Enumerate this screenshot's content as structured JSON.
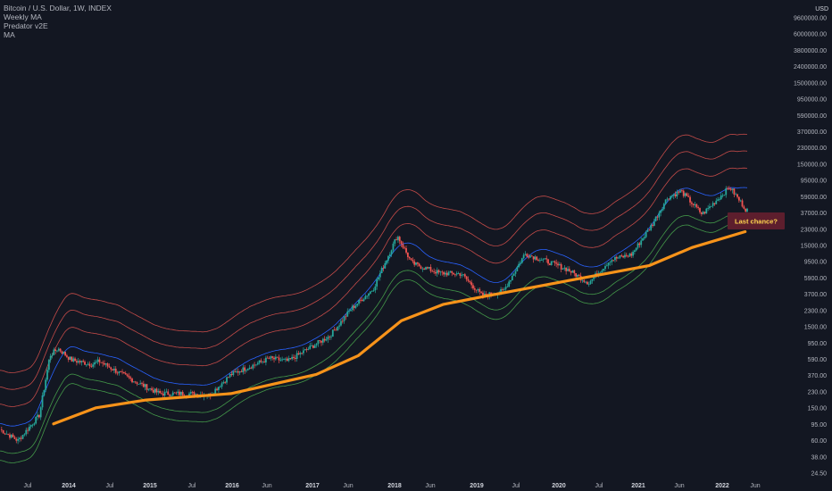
{
  "legend": {
    "symbol": "Bitcoin / U.S. Dollar, 1W, INDEX",
    "indicators": [
      "Weekly MA",
      "Predator v2E",
      "MA"
    ]
  },
  "price_axis": {
    "unit": "USD",
    "ticks": [
      "9600000.00",
      "6000000.00",
      "3800000.00",
      "2400000.00",
      "1500000.00",
      "950000.00",
      "590000.00",
      "370000.00",
      "230000.00",
      "150000.00",
      "95000.00",
      "59000.00",
      "37000.00",
      "23000.00",
      "15000.00",
      "9500.00",
      "5900.00",
      "3700.00",
      "2300.00",
      "1500.00",
      "950.00",
      "590.00",
      "370.00",
      "230.00",
      "150.00",
      "95.00",
      "60.00",
      "38.00",
      "24.50"
    ]
  },
  "time_axis": {
    "ticks": [
      {
        "label": "Jul",
        "year": false
      },
      {
        "label": "2014",
        "year": true
      },
      {
        "label": "Jul",
        "year": false
      },
      {
        "label": "2015",
        "year": true
      },
      {
        "label": "Jul",
        "year": false
      },
      {
        "label": "2016",
        "year": true
      },
      {
        "label": "Jun",
        "year": false
      },
      {
        "label": "2017",
        "year": true
      },
      {
        "label": "Jun",
        "year": false
      },
      {
        "label": "2018",
        "year": true
      },
      {
        "label": "Jun",
        "year": false
      },
      {
        "label": "2019",
        "year": true
      },
      {
        "label": "Jul",
        "year": false
      },
      {
        "label": "2020",
        "year": true
      },
      {
        "label": "Jul",
        "year": false
      },
      {
        "label": "2021",
        "year": true
      },
      {
        "label": "Jun",
        "year": false
      },
      {
        "label": "2022",
        "year": true
      },
      {
        "label": "Jun",
        "year": false
      }
    ]
  },
  "annotation": {
    "text": "Last chance?"
  },
  "colors": {
    "background": "#131722",
    "up_candle": "#26a69a",
    "down_candle": "#ef5350",
    "ma_line": "#f7931a",
    "upper_bands": "#e2534f",
    "lower_bands": "#4caf50",
    "mid_band": "#2962ff",
    "annotation_bg": "#5d1e2d",
    "annotation_text": "#ffd54f"
  },
  "chart_data": {
    "type": "candlestick",
    "scale": "log",
    "x_unit": "date",
    "x_range": [
      "2013-04-15",
      "2022-08-15"
    ],
    "y_range": [
      24.5,
      9600000
    ],
    "price_path": [
      [
        "2013-04-01",
        100
      ],
      [
        "2013-07-01",
        70
      ],
      [
        "2013-10-01",
        140
      ],
      [
        "2013-11-15",
        700
      ],
      [
        "2013-12-20",
        850
      ],
      [
        "2014-02-15",
        620
      ],
      [
        "2014-05-15",
        550
      ],
      [
        "2014-06-15",
        600
      ],
      [
        "2014-09-01",
        450
      ],
      [
        "2014-12-01",
        330
      ],
      [
        "2015-03-01",
        250
      ],
      [
        "2015-07-01",
        250
      ],
      [
        "2015-10-01",
        240
      ],
      [
        "2016-01-01",
        420
      ],
      [
        "2016-06-15",
        650
      ],
      [
        "2016-09-01",
        600
      ],
      [
        "2016-12-15",
        900
      ],
      [
        "2017-03-01",
        1200
      ],
      [
        "2017-06-01",
        2500
      ],
      [
        "2017-09-01",
        4200
      ],
      [
        "2017-12-15",
        18000
      ],
      [
        "2018-02-15",
        8500
      ],
      [
        "2018-06-15",
        6500
      ],
      [
        "2018-09-15",
        6400
      ],
      [
        "2018-12-15",
        3500
      ],
      [
        "2019-03-15",
        4000
      ],
      [
        "2019-06-15",
        11000
      ],
      [
        "2019-09-15",
        9000
      ],
      [
        "2019-12-15",
        7200
      ],
      [
        "2020-03-15",
        5000
      ],
      [
        "2020-06-15",
        9300
      ],
      [
        "2020-09-15",
        10800
      ],
      [
        "2020-12-15",
        25000
      ],
      [
        "2021-02-15",
        50000
      ],
      [
        "2021-04-15",
        60000
      ],
      [
        "2021-07-15",
        32000
      ],
      [
        "2021-11-10",
        67000
      ],
      [
        "2022-01-20",
        36000
      ]
    ],
    "ma": [
      [
        "2013-12-01",
        110
      ],
      [
        "2014-06-01",
        170
      ],
      [
        "2015-01-01",
        210
      ],
      [
        "2016-01-01",
        250
      ],
      [
        "2017-01-01",
        420
      ],
      [
        "2017-07-01",
        700
      ],
      [
        "2018-01-01",
        1800
      ],
      [
        "2018-07-01",
        2800
      ],
      [
        "2019-01-01",
        3500
      ],
      [
        "2020-01-01",
        5400
      ],
      [
        "2020-12-01",
        8000
      ],
      [
        "2021-06-01",
        13000
      ],
      [
        "2022-01-15",
        20000
      ]
    ],
    "upper_band_offsets": [
      2.2,
      3.5,
      5.5
    ],
    "lower_band_offsets": [
      0.62,
      0.48
    ],
    "mid_band_offset": 1.3
  }
}
